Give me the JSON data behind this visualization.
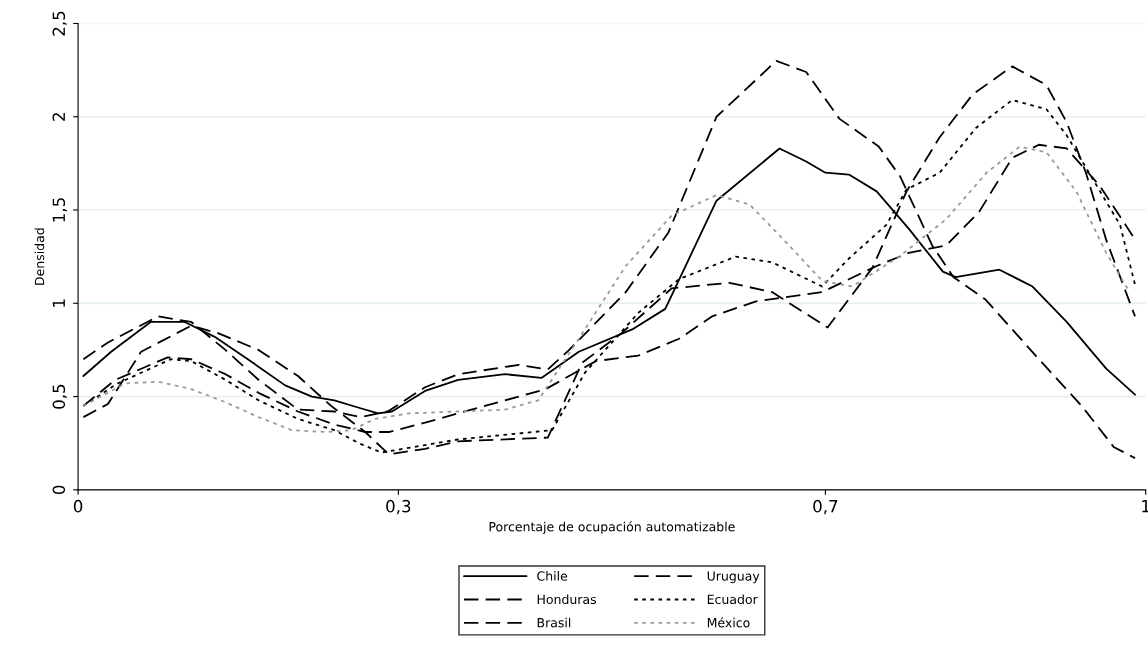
{
  "chart_data": {
    "type": "line",
    "xlabel": "Porcentaje de ocupación automatizable",
    "ylabel": "Densidad",
    "xlim": [
      0,
      1
    ],
    "xticks": [
      0,
      {
        "value": 0.3,
        "label": "0,3"
      },
      {
        "value": 0.7,
        "label": "0,7"
      },
      1
    ],
    "ylim": [
      0,
      2.5
    ],
    "yticks": [
      0,
      {
        "value": 0.5,
        "label": "0,5"
      },
      1,
      {
        "value": 1.5,
        "label": "1,5"
      },
      2,
      {
        "value": 2.5,
        "label": "2,5"
      }
    ],
    "grid": "y",
    "legend": "bottom",
    "marker": "none",
    "series": [
      {
        "name": "Chile",
        "color": "#000000",
        "line_style": "solid",
        "x": [
          0.005,
          0.031,
          0.068,
          0.1,
          0.128,
          0.159,
          0.194,
          0.219,
          0.24,
          0.263,
          0.281,
          0.294,
          0.325,
          0.356,
          0.4,
          0.434,
          0.469,
          0.519,
          0.55,
          0.598,
          0.657,
          0.682,
          0.7,
          0.722,
          0.748,
          0.778,
          0.81,
          0.822,
          0.863,
          0.894,
          0.926,
          0.963,
          0.99
        ],
        "values": [
          0.61,
          0.74,
          0.9,
          0.9,
          0.82,
          0.7,
          0.56,
          0.5,
          0.48,
          0.44,
          0.41,
          0.42,
          0.53,
          0.59,
          0.62,
          0.6,
          0.74,
          0.86,
          0.97,
          1.55,
          1.83,
          1.76,
          1.7,
          1.69,
          1.6,
          1.4,
          1.17,
          1.14,
          1.18,
          1.09,
          0.9,
          0.65,
          0.51
        ]
      },
      {
        "name": "Honduras",
        "color": "#000000",
        "line_style": "dashed",
        "x": [
          0.005,
          0.028,
          0.059,
          0.106,
          0.131,
          0.169,
          0.206,
          0.237,
          0.269,
          0.291,
          0.325,
          0.356,
          0.44,
          0.472,
          0.509,
          0.556,
          0.61,
          0.65,
          0.702,
          0.744,
          0.776,
          0.807,
          0.838,
          0.875,
          0.907,
          0.926,
          0.944,
          0.963,
          0.99
        ],
        "values": [
          0.39,
          0.46,
          0.74,
          0.88,
          0.84,
          0.75,
          0.61,
          0.45,
          0.31,
          0.19,
          0.22,
          0.26,
          0.28,
          0.68,
          0.84,
          1.08,
          1.11,
          1.06,
          0.87,
          1.19,
          1.6,
          1.89,
          2.12,
          2.27,
          2.17,
          1.97,
          1.7,
          1.34,
          0.93
        ]
      },
      {
        "name": "Brasil",
        "color": "#000000",
        "line_style": "dashed",
        "x": [
          0.005,
          0.028,
          0.075,
          0.106,
          0.138,
          0.169,
          0.206,
          0.24,
          0.265,
          0.29,
          0.325,
          0.356,
          0.413,
          0.44,
          0.46,
          0.513,
          0.553,
          0.598,
          0.654,
          0.682,
          0.713,
          0.75,
          0.77,
          0.8,
          0.82,
          0.85,
          0.9,
          0.94,
          0.97,
          0.99
        ],
        "values": [
          0.7,
          0.79,
          0.93,
          0.9,
          0.75,
          0.59,
          0.43,
          0.42,
          0.39,
          0.42,
          0.55,
          0.62,
          0.67,
          0.645,
          0.75,
          1.06,
          1.38,
          2.0,
          2.3,
          2.24,
          1.99,
          1.84,
          1.68,
          1.31,
          1.14,
          1.02,
          0.7,
          0.45,
          0.23,
          0.17
        ]
      },
      {
        "name": "Uruguay",
        "color": "#000000",
        "line_style": "dashed",
        "x": [
          0.005,
          0.035,
          0.084,
          0.106,
          0.138,
          0.169,
          0.206,
          0.24,
          0.269,
          0.291,
          0.325,
          0.356,
          0.438,
          0.485,
          0.525,
          0.563,
          0.594,
          0.635,
          0.697,
          0.748,
          0.778,
          0.813,
          0.844,
          0.875,
          0.9,
          0.926,
          0.957,
          0.988
        ],
        "values": [
          0.45,
          0.59,
          0.71,
          0.7,
          0.62,
          0.52,
          0.42,
          0.35,
          0.31,
          0.31,
          0.36,
          0.41,
          0.54,
          0.69,
          0.72,
          0.81,
          0.93,
          1.01,
          1.06,
          1.2,
          1.27,
          1.31,
          1.49,
          1.78,
          1.85,
          1.83,
          1.63,
          1.36
        ]
      },
      {
        "name": "Ecuador",
        "color": "#000000",
        "line_style": "dotted",
        "x": [
          0.005,
          0.037,
          0.087,
          0.106,
          0.138,
          0.169,
          0.206,
          0.24,
          0.263,
          0.284,
          0.325,
          0.356,
          0.444,
          0.475,
          0.525,
          0.563,
          0.616,
          0.65,
          0.697,
          0.722,
          0.757,
          0.776,
          0.807,
          0.841,
          0.875,
          0.907,
          0.926,
          0.95,
          0.976,
          0.99
        ],
        "values": [
          0.45,
          0.57,
          0.7,
          0.69,
          0.59,
          0.48,
          0.38,
          0.32,
          0.25,
          0.2,
          0.24,
          0.27,
          0.32,
          0.63,
          0.95,
          1.13,
          1.25,
          1.22,
          1.09,
          1.24,
          1.42,
          1.61,
          1.7,
          1.94,
          2.09,
          2.04,
          1.9,
          1.67,
          1.42,
          1.1
        ]
      },
      {
        "name": "México",
        "color": "#9a9a9a",
        "line_style": "dotted",
        "x": [
          0.005,
          0.044,
          0.075,
          0.106,
          0.138,
          0.169,
          0.2,
          0.232,
          0.256,
          0.278,
          0.31,
          0.356,
          0.4,
          0.431,
          0.469,
          0.513,
          0.556,
          0.598,
          0.629,
          0.666,
          0.697,
          0.725,
          0.769,
          0.813,
          0.851,
          0.882,
          0.907,
          0.935,
          0.963,
          0.985
        ],
        "values": [
          0.45,
          0.57,
          0.58,
          0.54,
          0.47,
          0.39,
          0.32,
          0.31,
          0.32,
          0.38,
          0.41,
          0.42,
          0.43,
          0.48,
          0.81,
          1.2,
          1.47,
          1.58,
          1.53,
          1.31,
          1.12,
          1.09,
          1.25,
          1.45,
          1.7,
          1.84,
          1.81,
          1.6,
          1.27,
          1.06
        ]
      }
    ]
  }
}
